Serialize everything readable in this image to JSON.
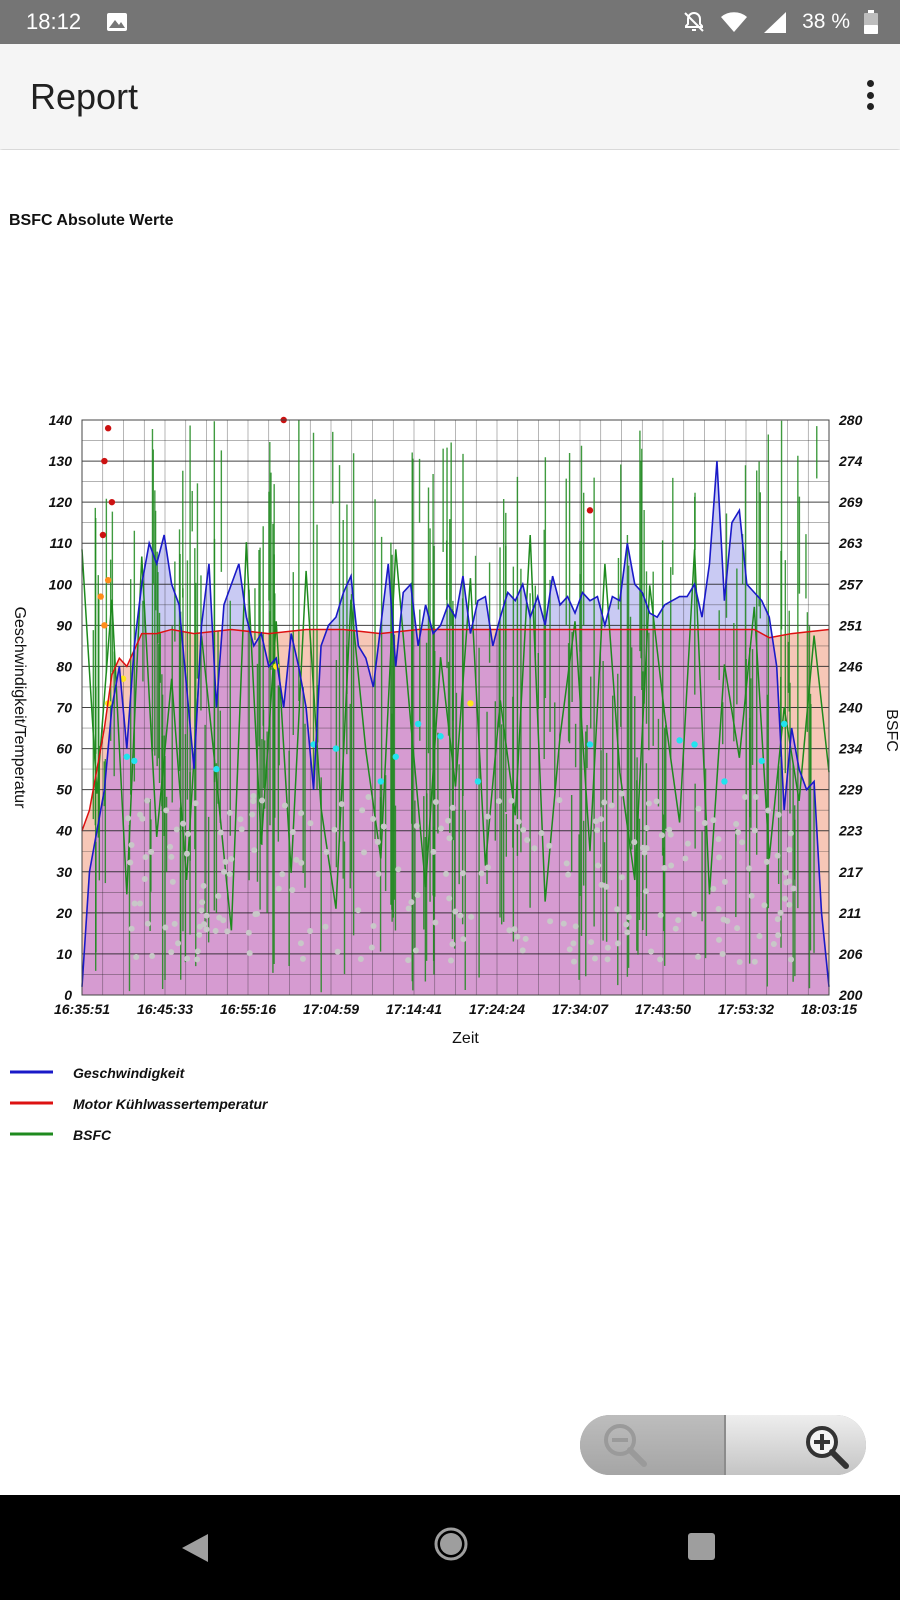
{
  "status_bar": {
    "time": "18:12",
    "battery": "38 %"
  },
  "app_bar": {
    "title": "Report"
  },
  "colors": {
    "speed": "#1a1ac8",
    "coolant": "#dd1111",
    "bsfc": "#1e8a1e",
    "speed_fill": "#b7b8ef",
    "coolant_fill": "#f7c7b7",
    "overlap_fill": "#d69bd1"
  },
  "chart_data": {
    "type": "line",
    "title": "BSFC Absolute Werte",
    "xlabel": "Zeit",
    "ylabel_left": "Geschwindigkeit/Temperatur",
    "ylabel_right": "BSFC",
    "x_ticks": [
      "16:35:51",
      "16:45:33",
      "16:55:16",
      "17:04:59",
      "17:14:41",
      "17:24:24",
      "17:34:07",
      "17:43:50",
      "17:53:32",
      "18:03:15"
    ],
    "y_left": {
      "range": [
        0,
        140
      ],
      "ticks": [
        "140",
        "130",
        "120",
        "110",
        "100",
        "90",
        "80",
        "70",
        "60",
        "50",
        "40",
        "30",
        "20",
        "10",
        "0"
      ]
    },
    "y_right": {
      "range": [
        200,
        280
      ],
      "ticks": [
        "280",
        "274",
        "269",
        "263",
        "257",
        "251",
        "246",
        "240",
        "234",
        "229",
        "223",
        "217",
        "211",
        "206",
        "200"
      ]
    },
    "grid": true,
    "legend_position": "bottom-left",
    "legend": [
      "Geschwindigkeit",
      "Motor Kühlwassertemperatur",
      "BSFC"
    ],
    "series": [
      {
        "name": "Geschwindigkeit",
        "axis": "left",
        "color": "#1a1ac8",
        "x": [
          0,
          0.01,
          0.02,
          0.03,
          0.04,
          0.05,
          0.06,
          0.07,
          0.08,
          0.09,
          0.1,
          0.11,
          0.12,
          0.13,
          0.14,
          0.15,
          0.16,
          0.17,
          0.18,
          0.19,
          0.2,
          0.21,
          0.22,
          0.23,
          0.24,
          0.25,
          0.26,
          0.27,
          0.28,
          0.29,
          0.3,
          0.31,
          0.32,
          0.33,
          0.34,
          0.35,
          0.36,
          0.37,
          0.38,
          0.39,
          0.4,
          0.41,
          0.42,
          0.43,
          0.44,
          0.45,
          0.46,
          0.47,
          0.48,
          0.49,
          0.5,
          0.51,
          0.52,
          0.53,
          0.54,
          0.55,
          0.56,
          0.57,
          0.58,
          0.59,
          0.6,
          0.61,
          0.62,
          0.63,
          0.64,
          0.65,
          0.66,
          0.67,
          0.68,
          0.69,
          0.7,
          0.71,
          0.72,
          0.73,
          0.74,
          0.75,
          0.76,
          0.77,
          0.78,
          0.79,
          0.8,
          0.81,
          0.82,
          0.83,
          0.84,
          0.85,
          0.86,
          0.87,
          0.88,
          0.89,
          0.9,
          0.91,
          0.92,
          0.93,
          0.94,
          0.95,
          0.96,
          0.97,
          0.98,
          0.99,
          1.0
        ],
        "y": [
          2,
          30,
          40,
          50,
          70,
          80,
          60,
          85,
          100,
          110,
          105,
          112,
          100,
          95,
          75,
          55,
          90,
          105,
          70,
          95,
          100,
          105,
          92,
          85,
          88,
          80,
          82,
          70,
          88,
          80,
          70,
          50,
          85,
          90,
          92,
          98,
          102,
          85,
          82,
          75,
          90,
          105,
          80,
          98,
          100,
          85,
          95,
          88,
          90,
          95,
          92,
          102,
          88,
          96,
          97,
          85,
          92,
          98,
          96,
          100,
          92,
          97,
          90,
          102,
          95,
          97,
          93,
          98,
          96,
          97,
          90,
          97,
          96,
          110,
          100,
          98,
          93,
          92,
          95,
          96,
          97,
          97,
          100,
          92,
          105,
          130,
          96,
          115,
          118,
          100,
          98,
          96,
          92,
          80,
          45,
          65,
          55,
          50,
          52,
          20,
          2
        ]
      },
      {
        "name": "Motor Kühlwassertemperatur",
        "axis": "left",
        "color": "#dd1111",
        "x": [
          0,
          0.01,
          0.02,
          0.03,
          0.04,
          0.05,
          0.06,
          0.08,
          0.1,
          0.12,
          0.15,
          0.2,
          0.25,
          0.3,
          0.35,
          0.4,
          0.45,
          0.5,
          0.55,
          0.6,
          0.65,
          0.7,
          0.75,
          0.8,
          0.85,
          0.9,
          0.92,
          0.95,
          1.0
        ],
        "y": [
          40,
          45,
          55,
          65,
          78,
          82,
          80,
          88,
          88,
          89,
          88,
          89,
          88,
          89,
          89,
          88,
          89,
          89,
          89,
          89,
          89,
          89,
          89,
          89,
          89,
          89,
          87,
          88,
          89
        ]
      },
      {
        "name": "BSFC",
        "axis": "right",
        "color": "#1e8a1e",
        "x": [
          0,
          0.02,
          0.04,
          0.06,
          0.08,
          0.1,
          0.12,
          0.14,
          0.16,
          0.18,
          0.2,
          0.22,
          0.24,
          0.26,
          0.28,
          0.3,
          0.32,
          0.34,
          0.36,
          0.38,
          0.4,
          0.42,
          0.44,
          0.46,
          0.48,
          0.5,
          0.52,
          0.54,
          0.56,
          0.58,
          0.6,
          0.62,
          0.64,
          0.66,
          0.68,
          0.7,
          0.72,
          0.74,
          0.76,
          0.78,
          0.8,
          0.82,
          0.84,
          0.86,
          0.88,
          0.9,
          0.92,
          0.94,
          0.96,
          0.98,
          1.0
        ],
        "y": [
          262,
          228,
          255,
          214,
          261,
          222,
          244,
          216,
          250,
          230,
          209,
          263,
          221,
          252,
          217,
          259,
          226,
          212,
          255,
          234,
          219,
          262,
          238,
          215,
          247,
          229,
          258,
          218,
          241,
          225,
          264,
          213,
          236,
          252,
          220,
          260,
          231,
          216,
          257,
          239,
          224,
          262,
          214,
          246,
          233,
          254,
          219,
          240,
          227,
          250,
          231
        ]
      }
    ]
  },
  "zoom_control": {
    "zoom_out": "zoom-out",
    "zoom_in": "zoom-in"
  }
}
